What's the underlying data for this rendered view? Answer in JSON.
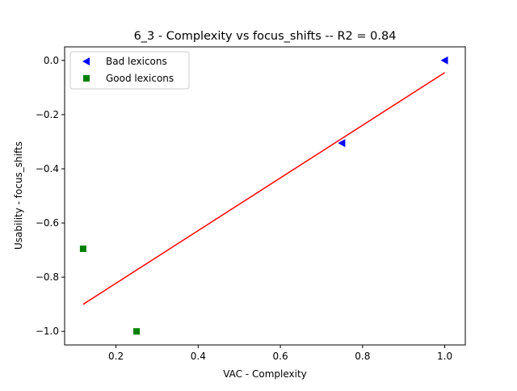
{
  "chart_data": {
    "type": "scatter",
    "title": "6_3 - Complexity  vs  focus_shifts -- R2 = 0.84",
    "xlabel": "VAC - Complexity",
    "ylabel": "Usability - focus_shifts",
    "xlim": [
      0.075,
      1.05
    ],
    "ylim": [
      -1.05,
      0.05
    ],
    "x_ticks": [
      0.2,
      0.4,
      0.6,
      0.8,
      1.0
    ],
    "x_tick_labels": [
      "0.2",
      "0.4",
      "0.6",
      "0.8",
      "1.0"
    ],
    "y_ticks": [
      0.0,
      -0.2,
      -0.4,
      -0.6,
      -0.8,
      -1.0
    ],
    "y_tick_labels": [
      "0.0",
      "−0.2",
      "−0.4",
      "−0.6",
      "−0.8",
      "−1.0"
    ],
    "grid": false,
    "legend_position": "top-left",
    "series": [
      {
        "name": "Bad lexicons",
        "marker": "triangle-left",
        "color": "#0000ff",
        "points": [
          {
            "x": 1.0,
            "y": 0.0
          },
          {
            "x": 0.75,
            "y": -0.305
          }
        ]
      },
      {
        "name": "Good lexicons",
        "marker": "square",
        "color": "#008000",
        "points": [
          {
            "x": 0.12,
            "y": -0.695
          },
          {
            "x": 0.25,
            "y": -1.0
          }
        ]
      }
    ],
    "fit_line": {
      "color": "#ff0000",
      "points": [
        {
          "x": 0.12,
          "y": -0.9
        },
        {
          "x": 1.0,
          "y": -0.045
        }
      ]
    }
  }
}
